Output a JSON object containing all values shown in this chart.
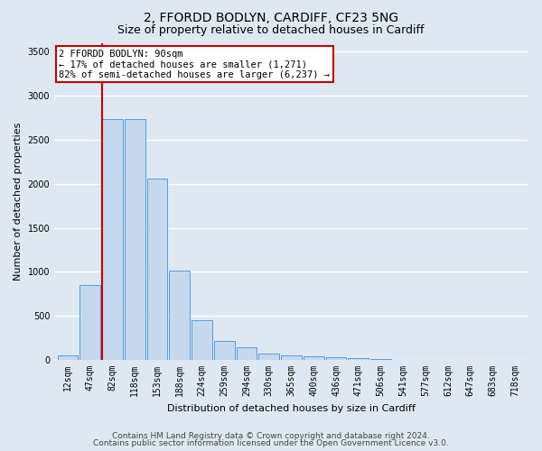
{
  "title": "2, FFORDD BODLYN, CARDIFF, CF23 5NG",
  "subtitle": "Size of property relative to detached houses in Cardiff",
  "xlabel": "Distribution of detached houses by size in Cardiff",
  "ylabel": "Number of detached properties",
  "categories": [
    "12sqm",
    "47sqm",
    "82sqm",
    "118sqm",
    "153sqm",
    "188sqm",
    "224sqm",
    "259sqm",
    "294sqm",
    "330sqm",
    "365sqm",
    "400sqm",
    "436sqm",
    "471sqm",
    "506sqm",
    "541sqm",
    "577sqm",
    "612sqm",
    "647sqm",
    "683sqm",
    "718sqm"
  ],
  "values": [
    55,
    850,
    2730,
    2730,
    2060,
    1010,
    455,
    215,
    145,
    70,
    55,
    40,
    30,
    20,
    8,
    5,
    3,
    2,
    2,
    2,
    2
  ],
  "bar_color": "#c5d8ee",
  "bar_edge_color": "#5b9bd5",
  "vline_x_index": 2,
  "vline_color": "#cc0000",
  "annotation_text": "2 FFORDD BODLYN: 90sqm\n← 17% of detached houses are smaller (1,271)\n82% of semi-detached houses are larger (6,237) →",
  "annotation_box_color": "#ffffff",
  "annotation_box_edge": "#cc0000",
  "ylim": [
    0,
    3600
  ],
  "yticks": [
    0,
    500,
    1000,
    1500,
    2000,
    2500,
    3000,
    3500
  ],
  "bg_color": "#dde8f3",
  "plot_bg_color": "#dde8f3",
  "grid_color": "#ffffff",
  "footer1": "Contains HM Land Registry data © Crown copyright and database right 2024.",
  "footer2": "Contains public sector information licensed under the Open Government Licence v3.0.",
  "title_fontsize": 10,
  "subtitle_fontsize": 9,
  "axis_label_fontsize": 8,
  "tick_fontsize": 7,
  "footer_fontsize": 6.5
}
